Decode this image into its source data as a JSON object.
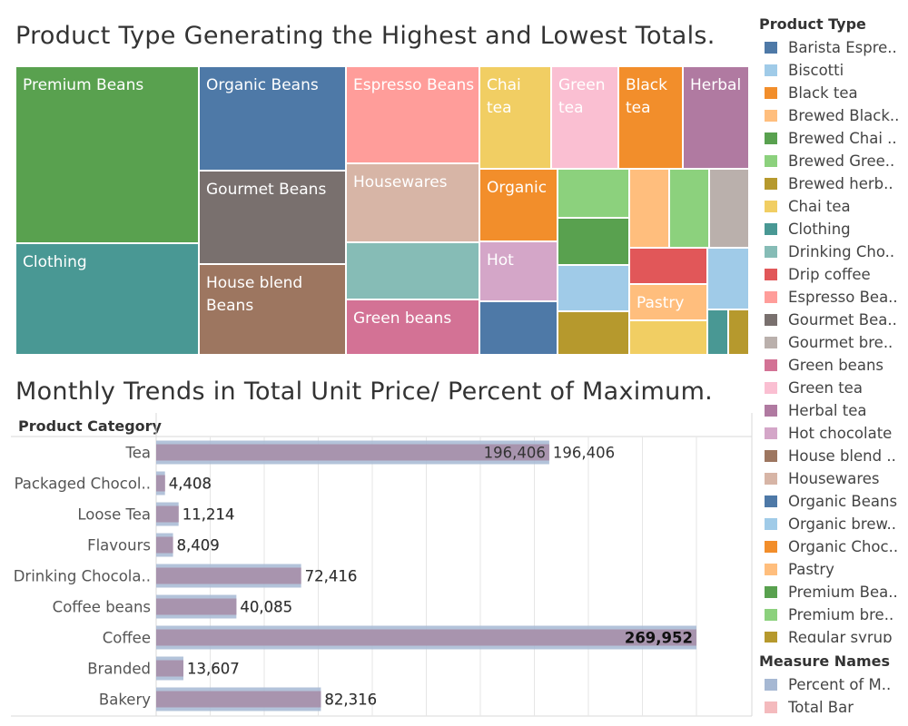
{
  "titles": {
    "treemap": "Product Type Generating the Highest and Lowest Totals.",
    "bars": "Monthly Trends in Total Unit Price/ Percent of Maximum."
  },
  "colors": {
    "percent_bar": "#a6b8d3",
    "total_bar": "#f4babd",
    "overlap": "#a894ae",
    "grid": "#e6e6e6"
  },
  "treemap_tiles": [
    {
      "label": "Premium Beans",
      "color": "#59a14f"
    },
    {
      "label": "Clothing",
      "color": "#499894"
    },
    {
      "label": "Organic Beans",
      "color": "#4e79a7"
    },
    {
      "label": "Gourmet Beans",
      "color": "#79706e"
    },
    {
      "label": "House blend Beans",
      "color": "#9d7660"
    },
    {
      "label": "Espresso Beans",
      "color": "#ff9d9a"
    },
    {
      "label": "Housewares",
      "color": "#d7b5a6"
    },
    {
      "label": "",
      "color": "#86bcb6"
    },
    {
      "label": "Green beans",
      "color": "#d37295"
    },
    {
      "label": "Chai tea",
      "color": "#f1ce63"
    },
    {
      "label": "Green tea",
      "color": "#fabfd2"
    },
    {
      "label": "Black tea",
      "color": "#f28e2b"
    },
    {
      "label": "Herbal",
      "color": "#b07aa1"
    },
    {
      "label": "Organic",
      "color": "#f28e2b"
    },
    {
      "label": "Hot",
      "color": "#d4a6c8"
    },
    {
      "label": "",
      "color": "#4e79a7"
    },
    {
      "label": "",
      "color": "#8cd17d"
    },
    {
      "label": "",
      "color": "#59a14f"
    },
    {
      "label": "",
      "color": "#a0cbe8"
    },
    {
      "label": "",
      "color": "#b6992d"
    },
    {
      "label": "",
      "color": "#ffbe7d"
    },
    {
      "label": "",
      "color": "#8cd17d"
    },
    {
      "label": "",
      "color": "#bab0ac"
    },
    {
      "label": "",
      "color": "#e15759"
    },
    {
      "label": "",
      "color": "#a0cbe8"
    },
    {
      "label": "Pastry",
      "color": "#ffbe7d"
    },
    {
      "label": "",
      "color": "#f1ce63"
    },
    {
      "label": "",
      "color": "#499894"
    },
    {
      "label": "",
      "color": "#b6992d"
    }
  ],
  "chart_data": {
    "type": "bar",
    "title": "Monthly Trends in Total Unit Price/ Percent of Maximum.",
    "row_header": "Product Category",
    "categories": [
      "Tea",
      "Packaged Chocol..",
      "Loose Tea",
      "Flavours",
      "Drinking Chocola..",
      "Coffee beans",
      "Coffee",
      "Branded",
      "Bakery"
    ],
    "series": [
      {
        "name": "Percent of M..",
        "color": "#a6b8d3",
        "values": [
          0.7276,
          0.0163,
          0.0415,
          0.0312,
          0.2683,
          0.1485,
          1.0,
          0.0504,
          0.3049
        ]
      },
      {
        "name": "Total Bar",
        "color": "#f4babd",
        "values": [
          196406,
          4408,
          11214,
          8409,
          72416,
          40085,
          269952,
          13607,
          82316
        ]
      }
    ],
    "left_labels": [
      "196,406",
      "4,408",
      "11,214",
      "8,409",
      "72,416",
      "40,085",
      "",
      "13,607",
      "82,316"
    ],
    "right_labels": [
      "196,406",
      "4,408",
      "11,214",
      "8,409",
      "72,416",
      "40,085",
      "269,952",
      "13,607",
      "82,316"
    ],
    "grid": true
  },
  "legend": {
    "product_type_title": "Product Type",
    "product_types": [
      {
        "label": "Barista Espre..",
        "color": "#4e79a7"
      },
      {
        "label": "Biscotti",
        "color": "#a0cbe8"
      },
      {
        "label": "Black tea",
        "color": "#f28e2b"
      },
      {
        "label": "Brewed Black..",
        "color": "#ffbe7d"
      },
      {
        "label": "Brewed Chai ..",
        "color": "#59a14f"
      },
      {
        "label": "Brewed Gree..",
        "color": "#8cd17d"
      },
      {
        "label": "Brewed herb..",
        "color": "#b6992d"
      },
      {
        "label": "Chai tea",
        "color": "#f1ce63"
      },
      {
        "label": "Clothing",
        "color": "#499894"
      },
      {
        "label": "Drinking Cho..",
        "color": "#86bcb6"
      },
      {
        "label": "Drip coffee",
        "color": "#e15759"
      },
      {
        "label": "Espresso Bea..",
        "color": "#ff9d9a"
      },
      {
        "label": "Gourmet Bea..",
        "color": "#79706e"
      },
      {
        "label": "Gourmet bre..",
        "color": "#bab0ac"
      },
      {
        "label": "Green beans",
        "color": "#d37295"
      },
      {
        "label": "Green tea",
        "color": "#fabfd2"
      },
      {
        "label": "Herbal tea",
        "color": "#b07aa1"
      },
      {
        "label": "Hot chocolate",
        "color": "#d4a6c8"
      },
      {
        "label": "House blend ..",
        "color": "#9d7660"
      },
      {
        "label": "Housewares",
        "color": "#d7b5a6"
      },
      {
        "label": "Organic Beans",
        "color": "#4e79a7"
      },
      {
        "label": "Organic brew..",
        "color": "#a0cbe8"
      },
      {
        "label": "Organic Choc..",
        "color": "#f28e2b"
      },
      {
        "label": "Pastry",
        "color": "#ffbe7d"
      },
      {
        "label": "Premium Bea..",
        "color": "#59a14f"
      },
      {
        "label": "Premium bre..",
        "color": "#8cd17d"
      },
      {
        "label": "Regular syrup",
        "color": "#b6992d"
      }
    ],
    "measure_title": "Measure Names",
    "measures": [
      {
        "label": "Percent of M..",
        "color": "#a6b8d3"
      },
      {
        "label": "Total Bar",
        "color": "#f4babd"
      }
    ]
  }
}
